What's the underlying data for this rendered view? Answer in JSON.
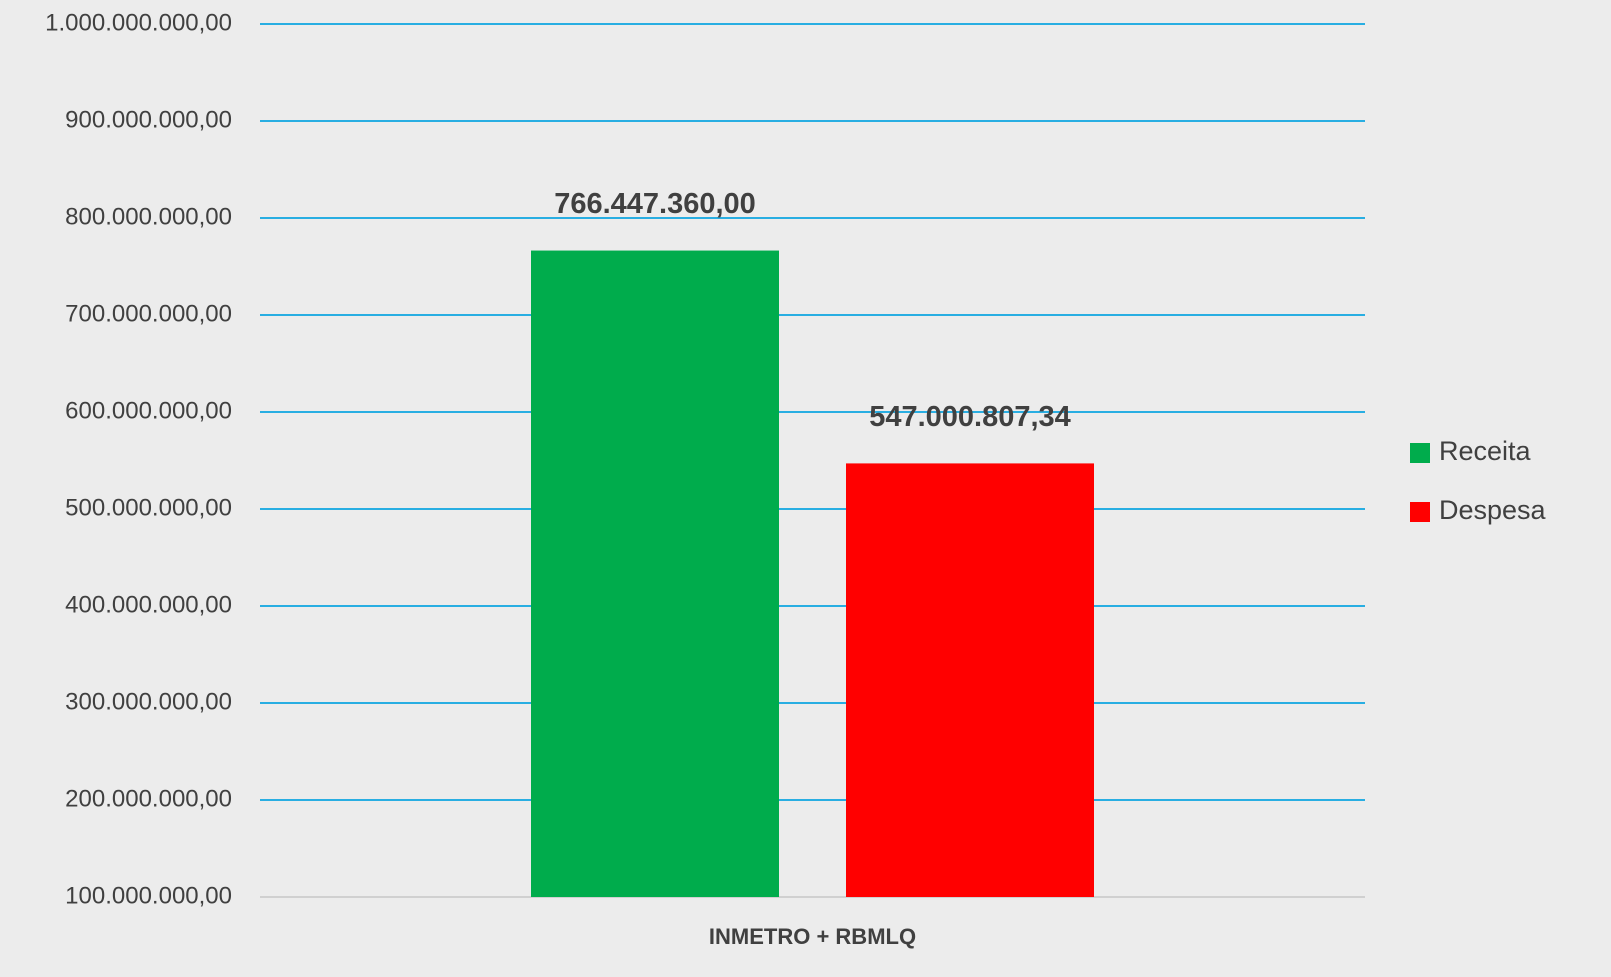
{
  "chart_data": {
    "type": "bar",
    "categories": [
      "INMETRO + RBMLQ"
    ],
    "series": [
      {
        "name": "Receita",
        "color": "#00ac4c",
        "values": [
          766447360.0
        ],
        "value_labels": [
          "766.447.360,00"
        ]
      },
      {
        "name": "Despesa",
        "color": "#ff0000",
        "values": [
          547000807.34
        ],
        "value_labels": [
          "547.000.807,34"
        ]
      }
    ],
    "ylim": [
      100000000,
      1000000000
    ],
    "yticks": [
      {
        "value": 100000000,
        "label": "100.000.000,00"
      },
      {
        "value": 200000000,
        "label": "200.000.000,00"
      },
      {
        "value": 300000000,
        "label": "300.000.000,00"
      },
      {
        "value": 400000000,
        "label": "400.000.000,00"
      },
      {
        "value": 500000000,
        "label": "500.000.000,00"
      },
      {
        "value": 600000000,
        "label": "600.000.000,00"
      },
      {
        "value": 700000000,
        "label": "700.000.000,00"
      },
      {
        "value": 800000000,
        "label": "800.000.000,00"
      },
      {
        "value": 900000000,
        "label": "900.000.000,00"
      },
      {
        "value": 1000000000,
        "label": "1.000.000.000,00"
      }
    ],
    "grid": true,
    "legend": "right"
  }
}
